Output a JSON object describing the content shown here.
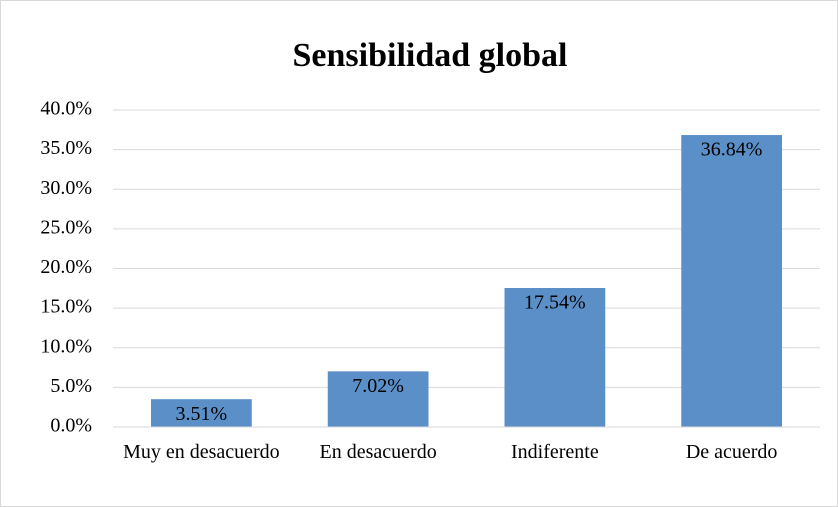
{
  "chart_data": {
    "type": "bar",
    "title": "Sensibilidad global",
    "categories": [
      "Muy en desacuerdo",
      "En desacuerdo",
      "Indiferente",
      "De acuerdo"
    ],
    "values": [
      3.51,
      7.02,
      17.54,
      36.84
    ],
    "value_labels": [
      "3.51%",
      "7.02%",
      "17.54%",
      "36.84%"
    ],
    "color": "#5b8fc7",
    "ylim": [
      0,
      40
    ],
    "yticks": [
      {
        "value": 0,
        "label": "0.0%"
      },
      {
        "value": 5,
        "label": "5.0%"
      },
      {
        "value": 10,
        "label": "10.0%"
      },
      {
        "value": 15,
        "label": "15.0%"
      },
      {
        "value": 20,
        "label": "20.0%"
      },
      {
        "value": 25,
        "label": "25.0%"
      },
      {
        "value": 30,
        "label": "30.0%"
      },
      {
        "value": 35,
        "label": "35.0%"
      },
      {
        "value": 40,
        "label": "40.0%"
      }
    ],
    "grid": true
  }
}
